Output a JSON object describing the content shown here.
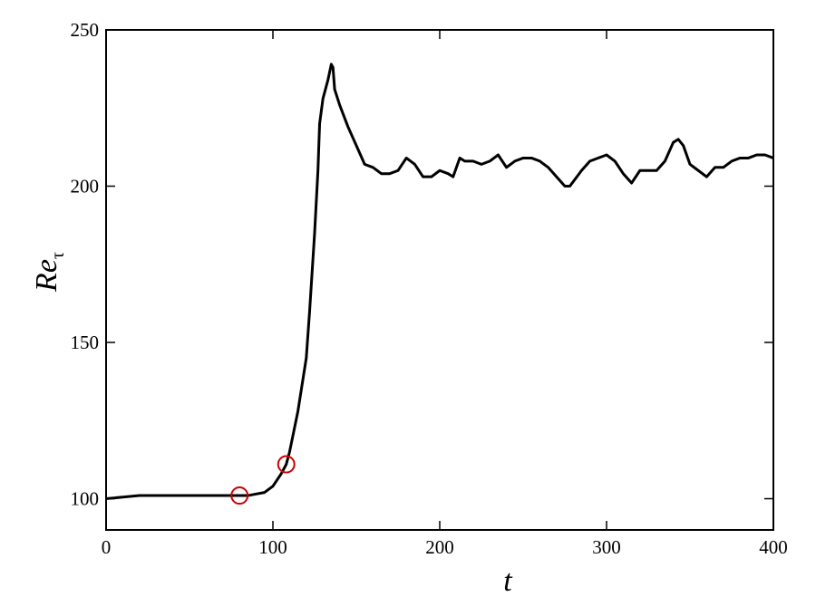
{
  "chart_data": {
    "type": "line",
    "xlabel": "t",
    "ylabel": {
      "text": "Re",
      "subscript": "τ"
    },
    "xlim": [
      0,
      400
    ],
    "xticks": [
      0,
      100,
      200,
      300,
      400
    ],
    "ylim": [
      90,
      250
    ],
    "yticks": [
      100,
      150,
      200,
      250
    ],
    "x": [
      0,
      10,
      20,
      40,
      60,
      80,
      85,
      90,
      95,
      100,
      105,
      108,
      110,
      115,
      120,
      122,
      125,
      127,
      128,
      130,
      133,
      135,
      136,
      137,
      140,
      145,
      150,
      155,
      160,
      165,
      170,
      175,
      180,
      185,
      190,
      195,
      200,
      205,
      208,
      212,
      215,
      220,
      225,
      230,
      235,
      240,
      245,
      250,
      255,
      260,
      265,
      270,
      275,
      278,
      285,
      290,
      300,
      305,
      310,
      315,
      320,
      325,
      330,
      335,
      340,
      343,
      346,
      350,
      355,
      360,
      365,
      370,
      375,
      380,
      385,
      390,
      395,
      400
    ],
    "series": [
      {
        "color": "#000000",
        "values": [
          100,
          100.5,
          101,
          101,
          101,
          101,
          101,
          101.5,
          102,
          104,
          108,
          111,
          115,
          128,
          145,
          160,
          185,
          205,
          220,
          228,
          234,
          239,
          238,
          231,
          226,
          219,
          213,
          207,
          206,
          204,
          204,
          205,
          209,
          207,
          203,
          203,
          205,
          204,
          203,
          209,
          208,
          208,
          207,
          208,
          210,
          206,
          208,
          209,
          209,
          208,
          206,
          203,
          200,
          200,
          205,
          208,
          210,
          208,
          204,
          201,
          205,
          205,
          205,
          208,
          214,
          215,
          213,
          207,
          205,
          203,
          206,
          206,
          208,
          209,
          209,
          210,
          210,
          209
        ]
      }
    ],
    "markers": {
      "color": "#cc0000",
      "x": [
        80,
        108
      ],
      "values": [
        101,
        111
      ]
    }
  }
}
